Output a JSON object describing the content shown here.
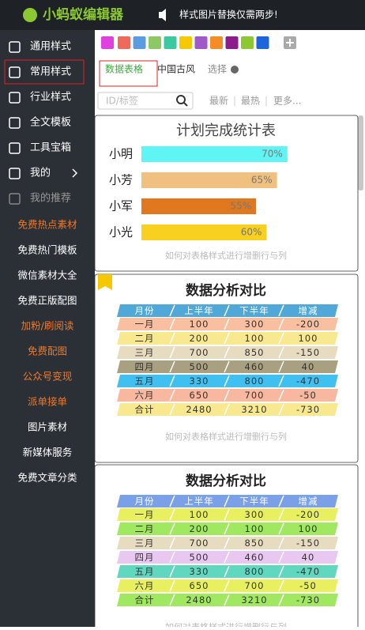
{
  "header": {
    "logo": "小蚂蚁编辑器",
    "notice": "样式图片替换仅需两步!"
  },
  "sidebar": {
    "menu": [
      "通用样式",
      "常用样式",
      "行业样式",
      "全文模板",
      "工具宝箱",
      "我的",
      "我的推荐"
    ],
    "links": [
      {
        "text": "免费热点素材",
        "color": "#f07828"
      },
      {
        "text": "免费热门模板",
        "color": "#ffffff"
      },
      {
        "text": "微信素材大全",
        "color": "#ffffff"
      },
      {
        "text": "免费正版配图",
        "color": "#ffffff"
      },
      {
        "text": "加粉/刷阅读",
        "color": "#f07828"
      },
      {
        "text": "免费配图",
        "color": "#f07828"
      },
      {
        "text": "公众号变现",
        "color": "#f07828"
      },
      {
        "text": "派单接单",
        "color": "#f07828"
      },
      {
        "text": "图片素材",
        "color": "#ffffff"
      },
      {
        "text": "新媒体服务",
        "color": "#ffffff"
      },
      {
        "text": "免费文章分类",
        "color": "#ffffff"
      }
    ]
  },
  "swatches": [
    "#ef6a5a",
    "#5b9be0",
    "#8cc864",
    "#3cc8a0",
    "#f5c800",
    "#a05ac8",
    "#f58c28",
    "#8c1e8c",
    "#8cc832",
    "#1e64dc"
  ],
  "tabs": [
    "数据表格",
    "中国古风",
    "选择"
  ],
  "search": {
    "placeholder": "ID/标签",
    "filters": [
      "最新",
      "最热",
      "更多..."
    ]
  },
  "cards": [
    {
      "title": "计划完成统计表",
      "bars": [
        {
          "name": "小明",
          "value": 70,
          "label": "70%",
          "color": "#5ff5f5"
        },
        {
          "name": "小芳",
          "value": 65,
          "label": "65%",
          "color": "#f0c080"
        },
        {
          "name": "小军",
          "value": 55,
          "label": "55%",
          "color": "#e07820"
        },
        {
          "name": "小光",
          "value": 60,
          "label": "60%",
          "color": "#f8d020"
        }
      ],
      "note": "如何对表格样式进行增删行与列"
    },
    {
      "title": "数据分析对比",
      "header": [
        "月份",
        "上半年",
        "下半年",
        "增减"
      ],
      "header_color": "#4fa8d8",
      "rows": [
        [
          "一月",
          100,
          300,
          -200
        ],
        [
          "二月",
          200,
          100,
          100
        ],
        [
          "三月",
          700,
          850,
          -150
        ],
        [
          "四月",
          500,
          460,
          40
        ],
        [
          "五月",
          330,
          800,
          -470
        ],
        [
          "六月",
          650,
          700,
          -50
        ],
        [
          "合计",
          2480,
          3210,
          -730
        ]
      ],
      "row_colors": [
        "#f8c0a0",
        "#f8e890",
        "#e8dcc0",
        "#a8a080",
        "#40c0f0",
        "#f8b8a0",
        "#f8e890"
      ],
      "note": "如何对表格样式进行增删行与列"
    },
    {
      "title": "数据分析对比",
      "header": [
        "月份",
        "上半年",
        "下半年",
        "增减"
      ],
      "header_color": "#7aa0e8",
      "rows": [
        [
          "一月",
          100,
          300,
          -200
        ],
        [
          "二月",
          200,
          100,
          100
        ],
        [
          "三月",
          700,
          850,
          -150
        ],
        [
          "四月",
          500,
          460,
          40
        ],
        [
          "五月",
          330,
          800,
          -470
        ],
        [
          "六月",
          650,
          700,
          -50
        ],
        [
          "合计",
          2480,
          3210,
          -730
        ]
      ],
      "row_colors": [
        "#e8f060",
        "#a0e860",
        "#e8dcc0",
        "#e8c8f0",
        "#60d8c0",
        "#e8f060",
        "#a0e860"
      ],
      "note": "如何对表格样式进行增删行与列"
    }
  ]
}
